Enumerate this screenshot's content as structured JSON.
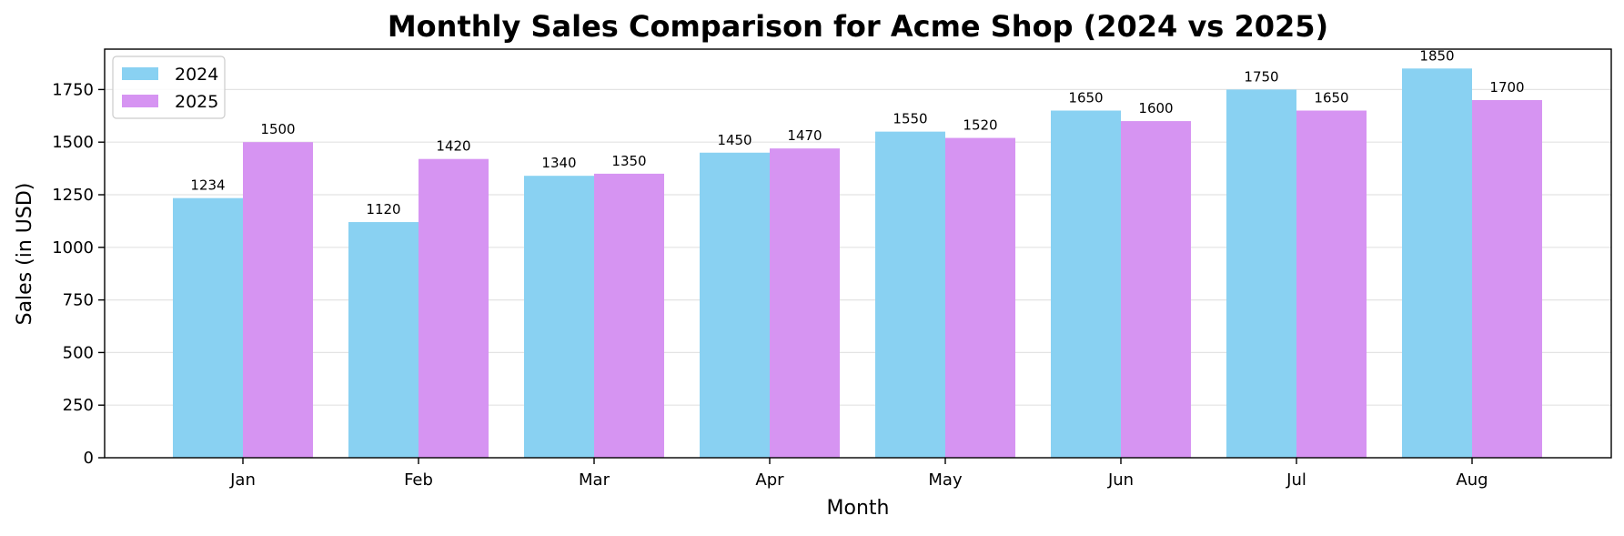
{
  "chart_data": {
    "type": "bar",
    "title": "Monthly Sales Comparison for Acme Shop (2024 vs 2025)",
    "xlabel": "Month",
    "ylabel": "Sales (in USD)",
    "categories": [
      "Jan",
      "Feb",
      "Mar",
      "Apr",
      "May",
      "Jun",
      "Jul",
      "Aug"
    ],
    "series": [
      {
        "name": "2024",
        "color": "#89D1F2",
        "values": [
          1234,
          1120,
          1340,
          1450,
          1550,
          1650,
          1750,
          1850
        ]
      },
      {
        "name": "2025",
        "color": "#D694F2",
        "values": [
          1500,
          1420,
          1350,
          1470,
          1520,
          1600,
          1650,
          1700
        ]
      }
    ],
    "yticks": [
      0,
      250,
      500,
      750,
      1000,
      1250,
      1500,
      1750
    ],
    "ylim": [
      0,
      1942
    ],
    "grid": "horizontal",
    "legend_position": "top-left"
  }
}
